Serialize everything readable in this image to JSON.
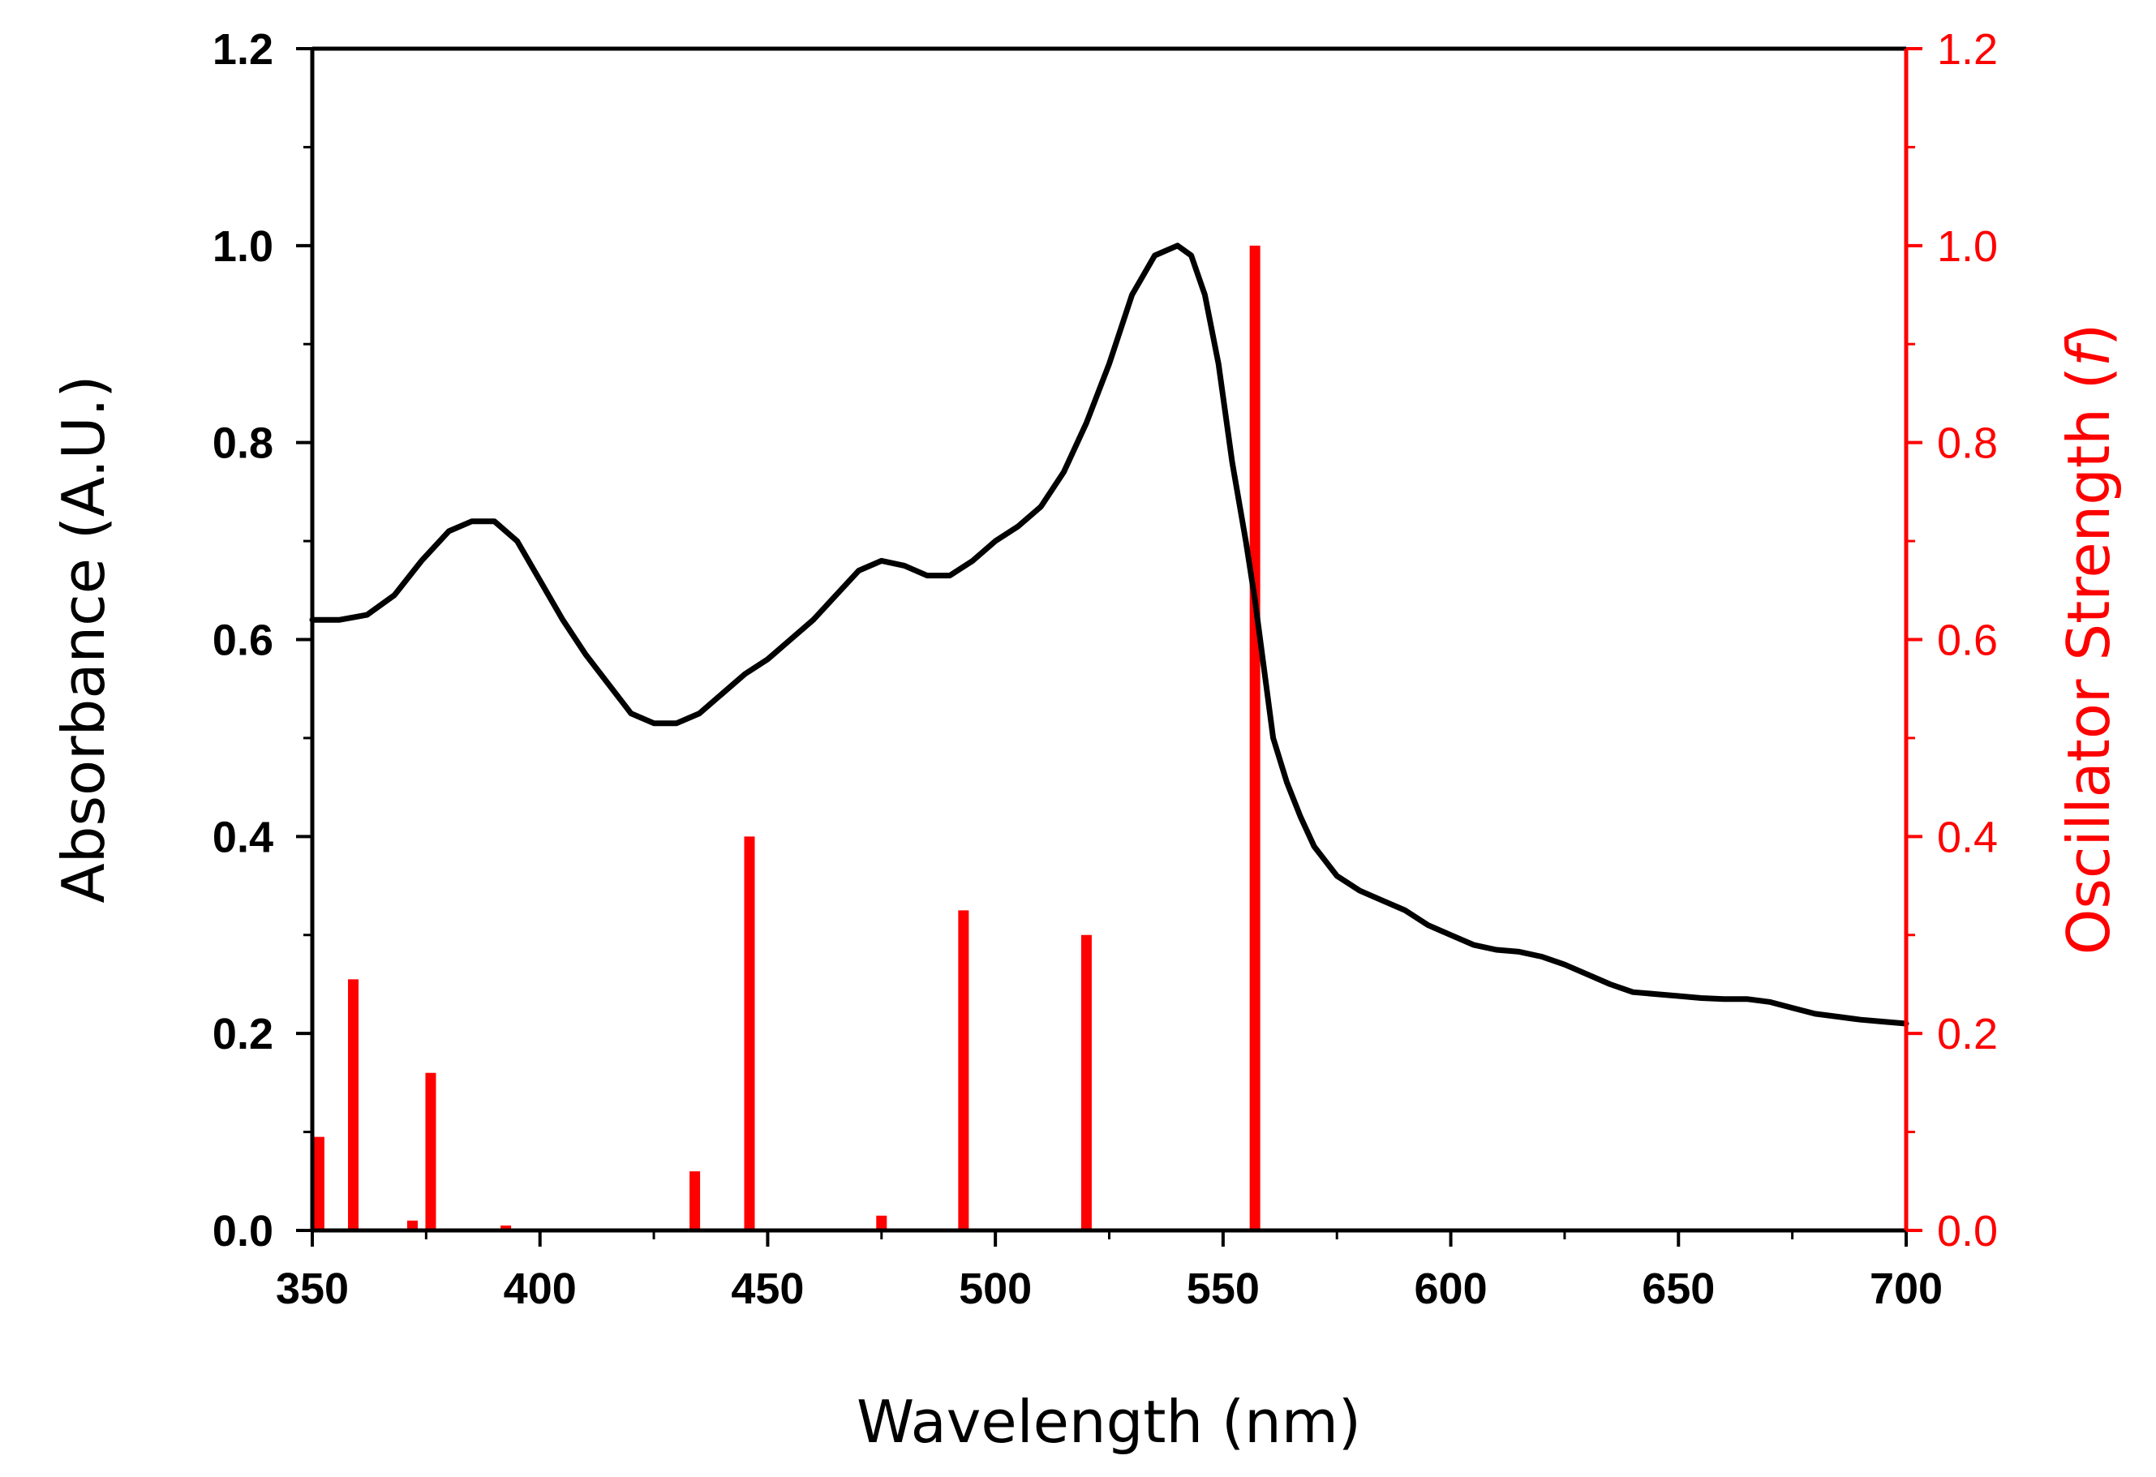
{
  "chart_data": {
    "type": "line+bar",
    "title": "",
    "xlabel": "Wavelength (nm)",
    "ylabel_left": "Absorbance (A.U.)",
    "ylabel_right_prefix": "Oscillator Strength (",
    "ylabel_right_italic": "f",
    "ylabel_right_suffix": ")",
    "xlim": [
      350,
      700
    ],
    "ylim_left": [
      0,
      1.2
    ],
    "ylim_right": [
      0,
      1.2
    ],
    "x_ticks": [
      "350",
      "400",
      "450",
      "500",
      "550",
      "600",
      "650",
      "700"
    ],
    "y_ticks_left": [
      "0.0",
      "0.2",
      "0.4",
      "0.6",
      "0.8",
      "1.0",
      "1.2"
    ],
    "y_ticks_right": [
      "0.0",
      "0.2",
      "0.4",
      "0.6",
      "0.8",
      "1.0",
      "1.2"
    ],
    "colors": {
      "absorbance": "#000000",
      "oscillator": "#ff0000"
    },
    "series": [
      {
        "name": "Absorbance",
        "axis": "left",
        "kind": "line",
        "color": "#000000",
        "x": [
          350,
          356,
          362,
          368,
          374,
          380,
          385,
          390,
          395,
          400,
          405,
          410,
          415,
          420,
          425,
          430,
          435,
          440,
          445,
          450,
          455,
          460,
          465,
          470,
          475,
          480,
          485,
          490,
          495,
          500,
          505,
          510,
          515,
          520,
          525,
          530,
          535,
          540,
          543,
          546,
          549,
          552,
          555,
          557,
          559,
          561,
          564,
          567,
          570,
          575,
          580,
          585,
          590,
          595,
          600,
          605,
          610,
          615,
          620,
          625,
          630,
          635,
          640,
          645,
          650,
          655,
          660,
          665,
          670,
          675,
          680,
          685,
          690,
          695,
          700
        ],
        "y": [
          0.62,
          0.62,
          0.625,
          0.645,
          0.68,
          0.71,
          0.72,
          0.72,
          0.7,
          0.66,
          0.62,
          0.585,
          0.555,
          0.525,
          0.515,
          0.515,
          0.525,
          0.545,
          0.565,
          0.58,
          0.6,
          0.62,
          0.645,
          0.67,
          0.68,
          0.675,
          0.665,
          0.665,
          0.68,
          0.7,
          0.715,
          0.735,
          0.77,
          0.82,
          0.88,
          0.95,
          0.99,
          1.0,
          0.99,
          0.95,
          0.88,
          0.78,
          0.7,
          0.64,
          0.57,
          0.5,
          0.455,
          0.42,
          0.39,
          0.36,
          0.345,
          0.335,
          0.325,
          0.31,
          0.3,
          0.29,
          0.285,
          0.283,
          0.278,
          0.27,
          0.26,
          0.25,
          0.242,
          0.24,
          0.238,
          0.236,
          0.235,
          0.235,
          0.232,
          0.226,
          0.22,
          0.217,
          0.214,
          0.212,
          0.21
        ]
      },
      {
        "name": "Oscillator Strength",
        "axis": "right",
        "kind": "stick",
        "color": "#ff0000",
        "x": [
          351.5,
          359,
          372,
          376,
          392.5,
          434,
          446,
          475,
          493,
          520,
          557
        ],
        "y": [
          0.095,
          0.255,
          0.01,
          0.16,
          0.005,
          0.06,
          0.4,
          0.015,
          0.325,
          0.3,
          1.0
        ]
      }
    ]
  }
}
